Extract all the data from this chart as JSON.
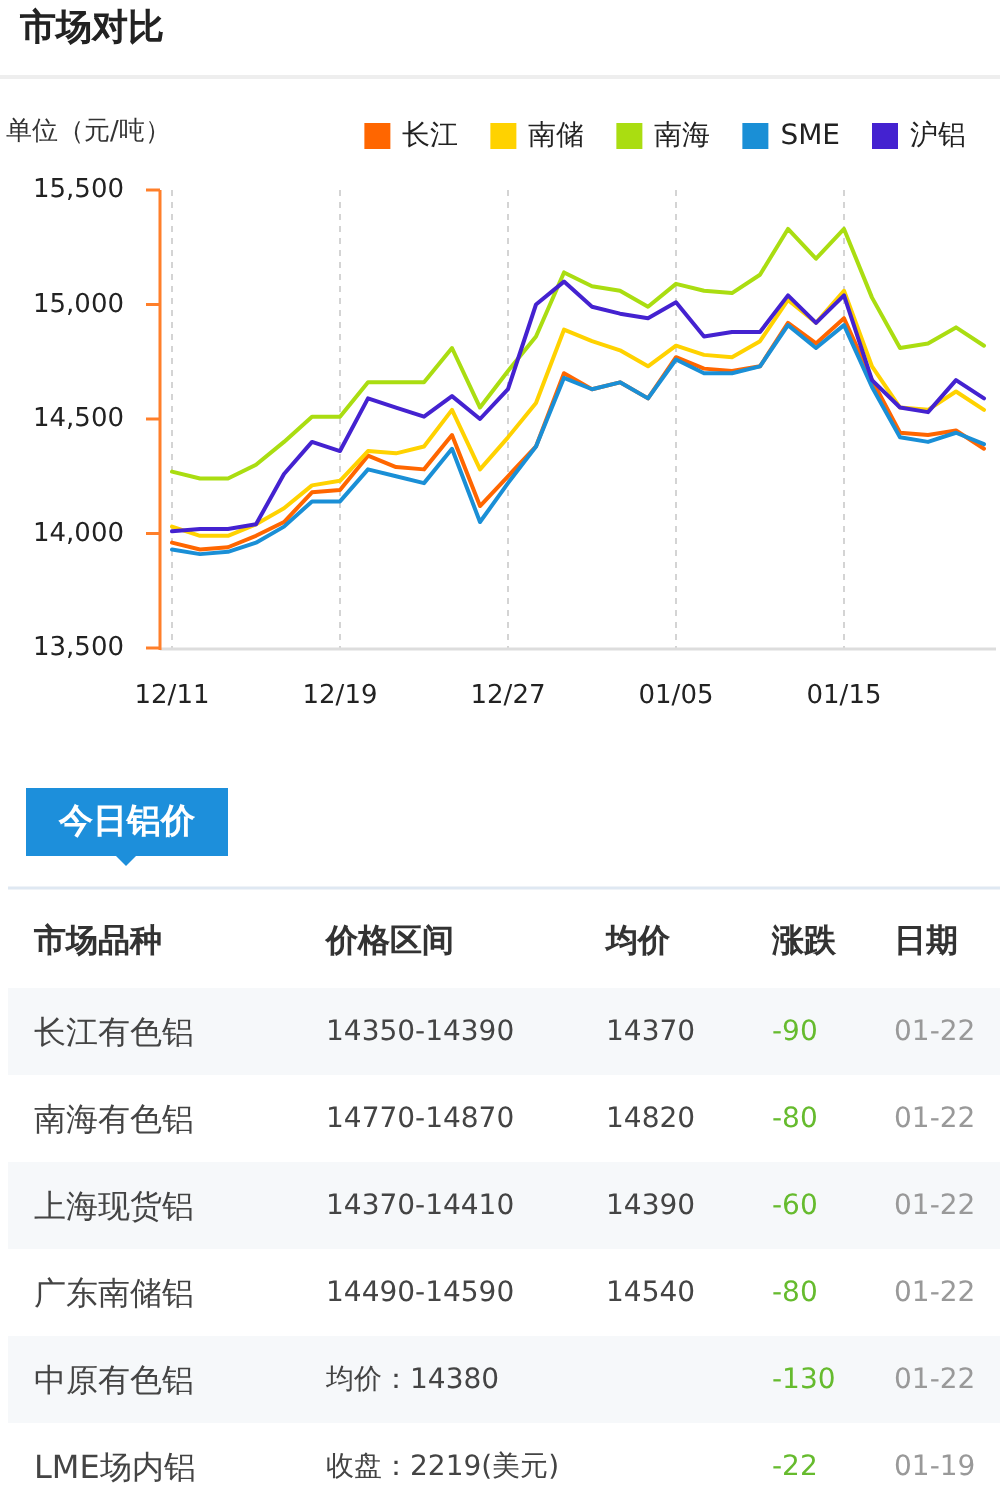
{
  "chart_data": [
    {
      "type": "line",
      "title": "市场对比",
      "ylabel": "单位（元/吨）",
      "categories": [
        "12/11",
        null,
        null,
        null,
        null,
        null,
        "12/19",
        null,
        null,
        null,
        null,
        null,
        "12/27",
        null,
        null,
        null,
        null,
        null,
        "01/05",
        null,
        null,
        null,
        null,
        null,
        "01/15",
        null,
        null,
        null,
        null,
        null
      ],
      "ylim": [
        13500,
        15500
      ],
      "yticks": [
        {
          "value": 13500,
          "label": "13,500"
        },
        {
          "value": 14000,
          "label": "14,000"
        },
        {
          "value": 14500,
          "label": "14,500"
        },
        {
          "value": 15000,
          "label": "15,000"
        },
        {
          "value": 15500,
          "label": "15,500"
        }
      ],
      "grid": "x",
      "legend": "top right",
      "series": [
        {
          "name": "长江",
          "color": "#ff6600",
          "values": [
            13960,
            13930,
            13940,
            13990,
            14050,
            14180,
            14190,
            14340,
            14290,
            14280,
            14430,
            14120,
            14250,
            14380,
            14700,
            14630,
            14660,
            14590,
            14770,
            14720,
            14710,
            14730,
            14920,
            14830,
            14940,
            14670,
            14440,
            14430,
            14450,
            14370
          ]
        },
        {
          "name": "南储",
          "color": "#ffd200",
          "values": [
            14030,
            13990,
            13990,
            14040,
            14110,
            14210,
            14230,
            14360,
            14350,
            14380,
            14540,
            14280,
            14420,
            14570,
            14890,
            14840,
            14800,
            14730,
            14820,
            14780,
            14770,
            14840,
            15020,
            14920,
            15060,
            14730,
            14550,
            14540,
            14620,
            14540
          ]
        },
        {
          "name": "南海",
          "color": "#aadd11",
          "values": [
            14270,
            14240,
            14240,
            14300,
            14400,
            14510,
            14510,
            14660,
            14660,
            14660,
            14810,
            14550,
            14710,
            14860,
            15140,
            15080,
            15060,
            14990,
            15090,
            15060,
            15050,
            15130,
            15330,
            15200,
            15330,
            15030,
            14810,
            14830,
            14900,
            14820
          ]
        },
        {
          "name": "SME",
          "color": "#1a8fd6",
          "values": [
            13930,
            13910,
            13920,
            13960,
            14030,
            14140,
            14140,
            14280,
            14250,
            14220,
            14370,
            14050,
            14220,
            14380,
            14680,
            14630,
            14660,
            14590,
            14760,
            14700,
            14700,
            14730,
            14910,
            14810,
            14910,
            14640,
            14420,
            14400,
            14440,
            14390
          ]
        },
        {
          "name": "沪铝",
          "color": "#4422d0",
          "values": [
            14010,
            14020,
            14020,
            14040,
            14260,
            14400,
            14360,
            14590,
            14550,
            14510,
            14600,
            14500,
            14630,
            15000,
            15100,
            14990,
            14960,
            14940,
            15010,
            14860,
            14880,
            14880,
            15040,
            14920,
            15040,
            14670,
            14550,
            14530,
            14670,
            14590
          ]
        }
      ]
    },
    {
      "type": "other",
      "title": "今日铝价",
      "categories": [
        "市场品种",
        "价格区间",
        "均价",
        "涨跌",
        "日期"
      ],
      "cell_labels": [
        [
          "长江有色铝",
          "14350-14390",
          "14370",
          "-90",
          "01-22"
        ],
        [
          "南海有色铝",
          "14770-14870",
          "14820",
          "-80",
          "01-22"
        ],
        [
          "上海现货铝",
          "14370-14410",
          "14390",
          "-60",
          "01-22"
        ],
        [
          "广东南储铝",
          "14490-14590",
          "14540",
          "-80",
          "01-22"
        ],
        [
          "中原有色铝",
          "均价：14380",
          null,
          "-130",
          "01-22"
        ],
        [
          "LME场内铝",
          "收盘：2219(美元)",
          null,
          "-22",
          "01-19"
        ]
      ]
    }
  ]
}
